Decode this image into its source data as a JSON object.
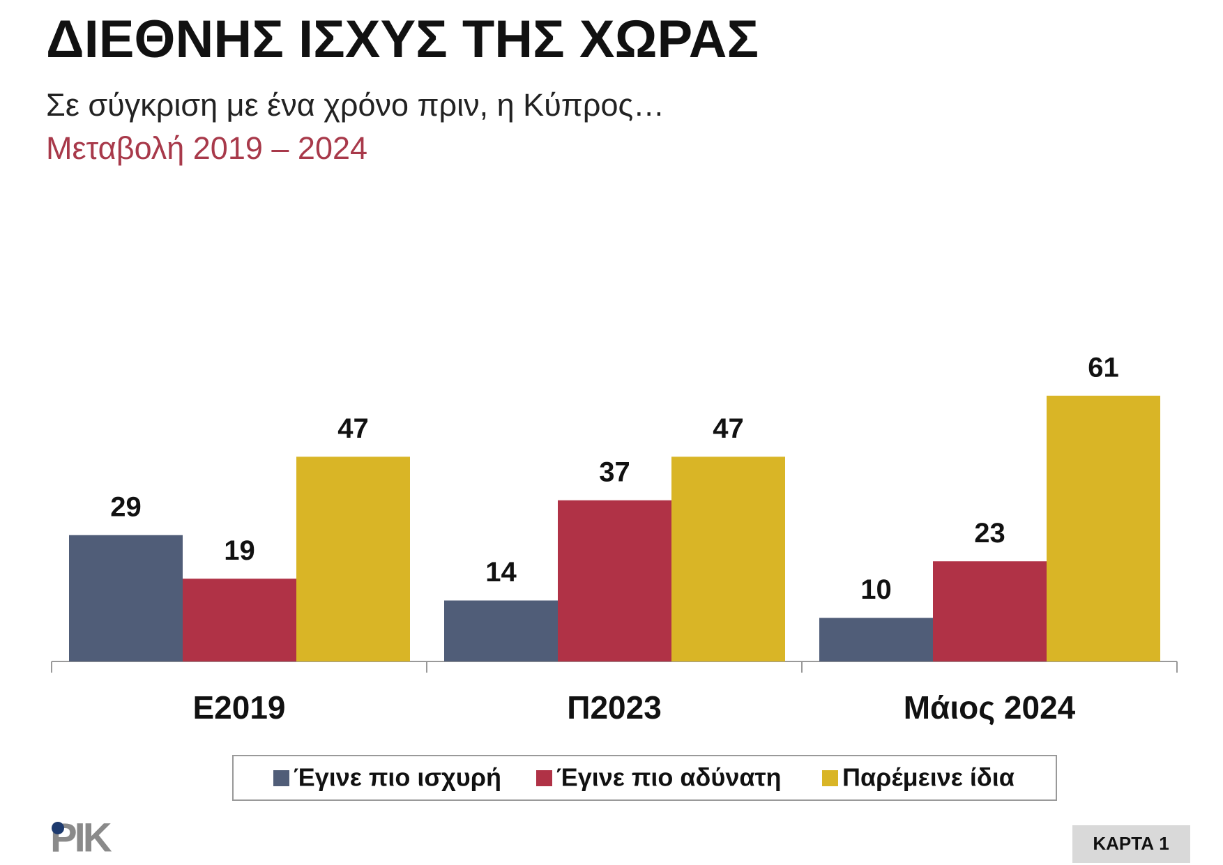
{
  "chart_data": {
    "type": "bar",
    "title": "ΔΙΕΘΝΗΣ ΙΣΧΥΣ ΤΗΣ ΧΩΡΑΣ",
    "subtitle": "Σε σύγκριση με ένα χρόνο πριν, η Κύπρος…",
    "period": "Μεταβολή 2019 – 2024",
    "categories": [
      "Ε2019",
      "Π2023",
      "Μάιος 2024"
    ],
    "series": [
      {
        "name": "Έγινε πιο ισχυρή",
        "color": "#505d78",
        "values": [
          29,
          14,
          10
        ]
      },
      {
        "name": "Έγινε πιο αδύνατη",
        "color": "#b03246",
        "values": [
          19,
          37,
          23
        ]
      },
      {
        "name": "Παρέμεινε ίδια",
        "color": "#d9b526",
        "values": [
          47,
          47,
          61
        ]
      }
    ]
  },
  "logo": "ΡΙΚ",
  "card": "ΚΑΡΤΑ 1"
}
